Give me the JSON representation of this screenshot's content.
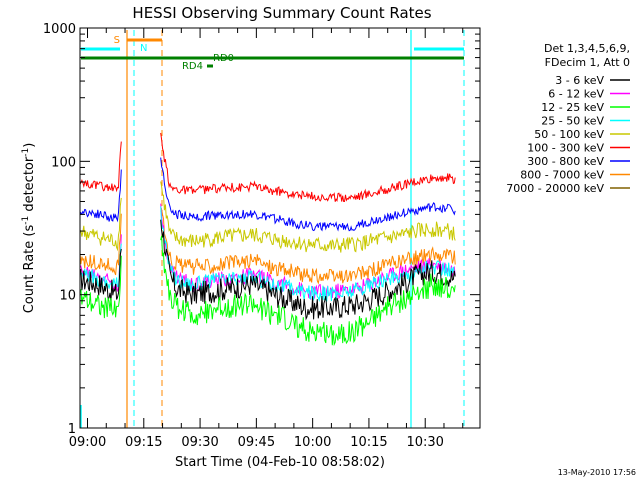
{
  "chart_data": {
    "type": "line",
    "title": "HESSI Observing Summary Count Rates",
    "xlabel": "Start Time (04-Feb-10 08:58:02)",
    "ylabel_main": "Count Rate (s",
    "ylabel_sup1": "-1",
    "ylabel_mid": " detector",
    "ylabel_sup2": "-1",
    "ylabel_end": ")",
    "footer": "13-May-2010 17:56",
    "xlim_min": [
      0,
      106.6
    ],
    "ylim": [
      1,
      1000
    ],
    "yscale": "log",
    "x_ticks": [
      {
        "label": "09:00",
        "value": 2
      },
      {
        "label": "09:15",
        "value": 17
      },
      {
        "label": "09:30",
        "value": 32
      },
      {
        "label": "09:45",
        "value": 47
      },
      {
        "label": "10:00",
        "value": 62
      },
      {
        "label": "10:15",
        "value": 77
      },
      {
        "label": "10:30",
        "value": 92
      }
    ],
    "y_ticks": [
      {
        "label": "1",
        "value": 1
      },
      {
        "label": "10",
        "value": 10
      },
      {
        "label": "100",
        "value": 100
      },
      {
        "label": "1000",
        "value": 1000
      }
    ],
    "legend": {
      "header": [
        "Det 1,3,4,5,6,9,",
        "FDecim 1, Att 0"
      ],
      "placement": "right"
    },
    "series": [
      {
        "name": "3 - 6 keV",
        "color": "#000000",
        "x": [
          0,
          5,
          10,
          11,
          12,
          13,
          15,
          22,
          26,
          30,
          38,
          46,
          52,
          60,
          68,
          74,
          80,
          86,
          90,
          94,
          98,
          100
        ],
        "y": [
          13,
          12,
          10,
          10,
          12,
          40,
          40,
          16,
          11,
          10,
          11,
          12,
          10,
          8,
          8,
          8.5,
          10,
          12,
          14,
          15,
          14,
          13
        ]
      },
      {
        "name": "6 - 12 keV",
        "color": "#ff00ff",
        "x": [
          0,
          5,
          10,
          11,
          12,
          13,
          15,
          22,
          26,
          30,
          38,
          46,
          52,
          60,
          68,
          74,
          80,
          86,
          90,
          94,
          98,
          100
        ],
        "y": [
          15,
          14,
          12,
          12,
          14,
          45,
          45,
          18,
          13.5,
          12,
          13,
          14,
          12.5,
          10.5,
          10.5,
          11,
          13,
          15,
          16,
          17,
          16,
          15
        ]
      },
      {
        "name": "12 - 25 keV",
        "color": "#00ff00",
        "x": [
          0,
          5,
          10,
          11,
          12,
          13,
          15,
          22,
          26,
          30,
          38,
          46,
          52,
          60,
          68,
          74,
          80,
          86,
          90,
          94,
          98,
          100
        ],
        "y": [
          10,
          8.5,
          7.5,
          7.5,
          9,
          30,
          30,
          11,
          8,
          7,
          8,
          8.5,
          7,
          5.5,
          5,
          5.5,
          7.5,
          9,
          10,
          12,
          11,
          10
        ]
      },
      {
        "name": "25 - 50 keV",
        "color": "#00ffff",
        "x": [
          0,
          5,
          10,
          11,
          12,
          13,
          15,
          22,
          26,
          30,
          38,
          46,
          52,
          60,
          68,
          74,
          80,
          86,
          90,
          94,
          98,
          100
        ],
        "y": [
          14,
          13,
          12,
          12,
          14,
          42,
          42,
          17,
          13,
          12,
          13,
          13.5,
          12,
          10.5,
          10,
          11,
          12.5,
          14,
          15,
          16,
          15.5,
          14.5
        ]
      },
      {
        "name": "50 - 100 keV",
        "color": "#c8c800",
        "x": [
          0,
          5,
          10,
          11,
          12,
          13,
          15,
          22,
          26,
          30,
          38,
          46,
          52,
          60,
          68,
          74,
          80,
          86,
          90,
          94,
          98,
          100
        ],
        "y": [
          30,
          27,
          25,
          25,
          28,
          70,
          70,
          30,
          26,
          25,
          27,
          28,
          26,
          24,
          23,
          24,
          26,
          28,
          30,
          31,
          30,
          28
        ]
      },
      {
        "name": "100 - 300 keV",
        "color": "#ff0000",
        "x": [
          0,
          5,
          10,
          11,
          12,
          13,
          15,
          22,
          26,
          30,
          38,
          46,
          52,
          60,
          68,
          74,
          80,
          86,
          90,
          94,
          98,
          100
        ],
        "y": [
          70,
          65,
          62,
          62,
          68,
          110,
          110,
          65,
          62,
          60,
          63,
          65,
          60,
          55,
          53,
          55,
          60,
          66,
          70,
          74,
          76,
          72
        ]
      },
      {
        "name": "300 - 800 keV",
        "color": "#0000ff",
        "x": [
          0,
          5,
          10,
          11,
          12,
          13,
          15,
          22,
          26,
          30,
          38,
          46,
          52,
          60,
          68,
          74,
          80,
          86,
          90,
          94,
          98,
          100
        ],
        "y": [
          42,
          40,
          37,
          37,
          40,
          100,
          100,
          45,
          40,
          38,
          40,
          40,
          37,
          33,
          32,
          33,
          37,
          41,
          43,
          45,
          45,
          43
        ]
      },
      {
        "name": "800 - 7000 keV",
        "color": "#ff8800",
        "x": [
          0,
          5,
          10,
          11,
          12,
          13,
          15,
          22,
          26,
          30,
          38,
          46,
          52,
          60,
          68,
          74,
          80,
          86,
          90,
          94,
          98,
          100
        ],
        "y": [
          18,
          17,
          16,
          16,
          18,
          55,
          55,
          20,
          17,
          16,
          17,
          18,
          16,
          14,
          13.5,
          14,
          16,
          18,
          19,
          20,
          20,
          19
        ]
      },
      {
        "name": "7000 - 20000 keV",
        "color": "#806000",
        "x": [],
        "y": []
      }
    ],
    "annotations": [
      {
        "label": "S",
        "color": "#ff8800"
      },
      {
        "label": "N",
        "color": "#00ffff"
      },
      {
        "label": "RD0",
        "color": "#008000"
      },
      {
        "label": "RD4",
        "color": "#008000"
      }
    ]
  }
}
